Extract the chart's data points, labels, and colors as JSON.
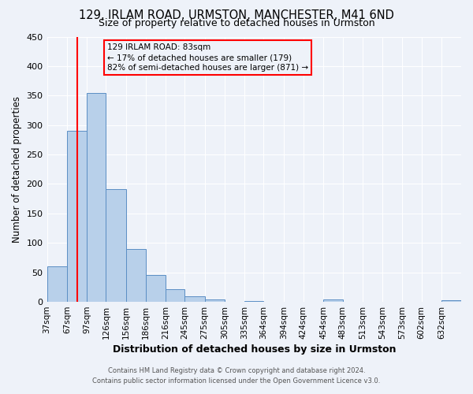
{
  "title_line1": "129, IRLAM ROAD, URMSTON, MANCHESTER, M41 6ND",
  "title_line2": "Size of property relative to detached houses in Urmston",
  "xlabel": "Distribution of detached houses by size in Urmston",
  "ylabel": "Number of detached properties",
  "bin_labels": [
    "37sqm",
    "67sqm",
    "97sqm",
    "126sqm",
    "156sqm",
    "186sqm",
    "216sqm",
    "245sqm",
    "275sqm",
    "305sqm",
    "335sqm",
    "364sqm",
    "394sqm",
    "424sqm",
    "454sqm",
    "483sqm",
    "513sqm",
    "543sqm",
    "573sqm",
    "602sqm",
    "632sqm"
  ],
  "bin_values": [
    60,
    290,
    355,
    191,
    90,
    46,
    21,
    9,
    4,
    0,
    1,
    0,
    0,
    0,
    4,
    0,
    0,
    0,
    0,
    0,
    3
  ],
  "bar_color": "#b8d0ea",
  "bar_edge_color": "#5b8ec4",
  "bin_edges": [
    37,
    67,
    97,
    126,
    156,
    186,
    216,
    245,
    275,
    305,
    335,
    364,
    394,
    424,
    454,
    483,
    513,
    543,
    573,
    602,
    632,
    662
  ],
  "vline_color": "red",
  "vline_x": 83,
  "annotation_title": "129 IRLAM ROAD: 83sqm",
  "annotation_line1": "← 17% of detached houses are smaller (179)",
  "annotation_line2": "82% of semi-detached houses are larger (871) →",
  "annotation_box_color": "red",
  "ylim": [
    0,
    450
  ],
  "yticks": [
    0,
    50,
    100,
    150,
    200,
    250,
    300,
    350,
    400,
    450
  ],
  "footer_line1": "Contains HM Land Registry data © Crown copyright and database right 2024.",
  "footer_line2": "Contains public sector information licensed under the Open Government Licence v3.0.",
  "bg_color": "#eef2f9",
  "grid_color": "white"
}
